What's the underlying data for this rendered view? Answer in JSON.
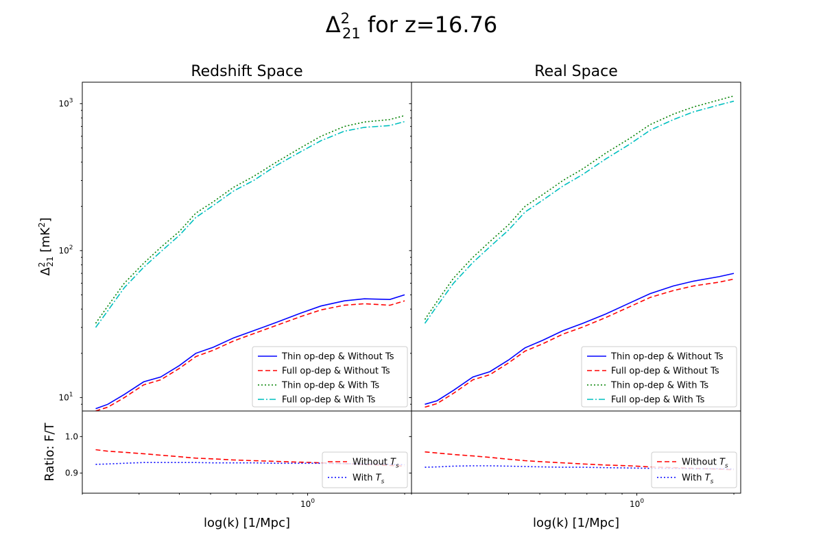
{
  "figure": {
    "suptitle_main": "Δ",
    "suptitle_sup": "2",
    "suptitle_sub": "21",
    "suptitle_rest": " for z=16.76"
  },
  "chart_data": [
    {
      "panel": "left-main",
      "type": "line",
      "title": "Redshift Space",
      "ylabel_main": "Δ",
      "ylabel_sup": "2",
      "ylabel_sub": "21",
      "ylabel_rest": " [mK",
      "ylabel_unit_sup": "2",
      "ylabel_close": "]",
      "xscale": "log",
      "yscale": "log",
      "xlim": [
        0.2,
        2.1
      ],
      "ylim": [
        8.1,
        1400
      ],
      "yticks": [
        {
          "value": 10,
          "base": "10",
          "exp": "1"
        },
        {
          "value": 100,
          "base": "10",
          "exp": "2"
        },
        {
          "value": 1000,
          "base": "10",
          "exp": "3"
        }
      ],
      "legend_position": "lower-right",
      "x": [
        0.22,
        0.24,
        0.27,
        0.31,
        0.35,
        0.4,
        0.45,
        0.51,
        0.59,
        0.68,
        0.8,
        0.95,
        1.1,
        1.3,
        1.5,
        1.8,
        2.0
      ],
      "series": [
        {
          "name": "Thin op-dep & Without Ts",
          "color": "#0000ff",
          "dash": "",
          "values": [
            8.4,
            9.0,
            10.5,
            12.8,
            13.8,
            16.5,
            20.0,
            22.0,
            25.5,
            28.5,
            32.5,
            37.5,
            42.0,
            45.5,
            47.0,
            46.5,
            50.0
          ]
        },
        {
          "name": "Full op-dep & Without Ts",
          "color": "#ff0000",
          "dash": "7,4",
          "values": [
            8.1,
            8.6,
            10.0,
            12.2,
            13.2,
            15.8,
            19.0,
            21.0,
            24.3,
            27.2,
            31.0,
            35.5,
            39.5,
            42.5,
            43.5,
            42.5,
            45.5
          ]
        },
        {
          "name": "Thin op-dep & With Ts",
          "color": "#008000",
          "dash": "2,3",
          "values": [
            32,
            42,
            60,
            82,
            105,
            135,
            180,
            215,
            270,
            320,
            400,
            500,
            600,
            700,
            750,
            780,
            830
          ]
        },
        {
          "name": "Full op-dep & With Ts",
          "color": "#00bfbf",
          "dash": "9,3,2,3",
          "values": [
            30,
            39,
            56,
            77,
            98,
            127,
            168,
            203,
            255,
            300,
            380,
            470,
            560,
            650,
            690,
            710,
            755
          ]
        }
      ]
    },
    {
      "panel": "right-main",
      "type": "line",
      "title": "Real Space",
      "xscale": "log",
      "yscale": "log",
      "xlim": [
        0.2,
        2.1
      ],
      "ylim": [
        8.1,
        1400
      ],
      "legend_position": "lower-right",
      "x": [
        0.22,
        0.24,
        0.27,
        0.31,
        0.35,
        0.4,
        0.45,
        0.51,
        0.59,
        0.68,
        0.8,
        0.95,
        1.1,
        1.3,
        1.5,
        1.8,
        2.0
      ],
      "series": [
        {
          "name": "Thin op-dep & Without Ts",
          "color": "#0000ff",
          "dash": "",
          "values": [
            9.0,
            9.5,
            11.2,
            13.8,
            15.0,
            18.0,
            21.8,
            24.5,
            28.5,
            32.0,
            37.0,
            44.0,
            51.0,
            57.5,
            62.0,
            66.5,
            70.0
          ]
        },
        {
          "name": "Full op-dep & Without Ts",
          "color": "#ff0000",
          "dash": "7,4",
          "values": [
            8.6,
            9.1,
            10.7,
            13.2,
            14.3,
            17.2,
            20.7,
            23.2,
            27.0,
            30.2,
            35.0,
            41.5,
            48.0,
            53.5,
            57.5,
            61.0,
            64.0
          ]
        },
        {
          "name": "Thin op-dep & With Ts",
          "color": "#008000",
          "dash": "2,3",
          "values": [
            34,
            45,
            65,
            90,
            115,
            150,
            200,
            240,
            300,
            360,
            460,
            580,
            720,
            850,
            950,
            1060,
            1130
          ]
        },
        {
          "name": "Full op-dep & With Ts",
          "color": "#00bfbf",
          "dash": "9,3,2,3",
          "values": [
            32,
            42,
            60,
            83,
            106,
            138,
            183,
            220,
            275,
            330,
            420,
            530,
            660,
            780,
            880,
            980,
            1040
          ]
        }
      ]
    },
    {
      "panel": "left-ratio",
      "type": "line",
      "ylabel": "Ratio: F/T",
      "xlabel": "log(k) [1/Mpc]",
      "xscale": "log",
      "xlim": [
        0.2,
        2.1
      ],
      "ylim": [
        0.845,
        1.07
      ],
      "yticks": [
        0.9,
        1.0
      ],
      "ytick_labels": [
        "0.9",
        "1.0"
      ],
      "xtick_base": "10",
      "xtick_exp": "0",
      "legend_position": "lower-right",
      "x": [
        0.22,
        0.24,
        0.27,
        0.31,
        0.35,
        0.4,
        0.45,
        0.51,
        0.59,
        0.68,
        0.8,
        0.95,
        1.1,
        1.3,
        1.5,
        1.8,
        2.0
      ],
      "series": [
        {
          "name_main": "Without ",
          "name_var": "T",
          "name_sub": "s",
          "color": "#ff0000",
          "dash": "7,4",
          "values": [
            0.964,
            0.96,
            0.957,
            0.953,
            0.949,
            0.945,
            0.941,
            0.939,
            0.936,
            0.934,
            0.932,
            0.93,
            0.928,
            0.926,
            0.924,
            0.921,
            0.919
          ]
        },
        {
          "name_main": "With ",
          "name_var": "T",
          "name_sub": "s",
          "color": "#0000ff",
          "dash": "2,3",
          "values": [
            0.924,
            0.925,
            0.927,
            0.929,
            0.929,
            0.929,
            0.929,
            0.928,
            0.928,
            0.928,
            0.927,
            0.927,
            0.927,
            0.926,
            0.925,
            0.924,
            0.923
          ]
        }
      ]
    },
    {
      "panel": "right-ratio",
      "type": "line",
      "xlabel": "log(k) [1/Mpc]",
      "xscale": "log",
      "xlim": [
        0.2,
        2.1
      ],
      "ylim": [
        0.845,
        1.07
      ],
      "xtick_base": "10",
      "xtick_exp": "0",
      "legend_position": "lower-right",
      "x": [
        0.22,
        0.24,
        0.27,
        0.31,
        0.35,
        0.4,
        0.45,
        0.51,
        0.59,
        0.68,
        0.8,
        0.95,
        1.1,
        1.3,
        1.5,
        1.8,
        2.0
      ],
      "series": [
        {
          "name_main": "Without ",
          "name_var": "T",
          "name_sub": "s",
          "color": "#ff0000",
          "dash": "7,4",
          "values": [
            0.958,
            0.955,
            0.951,
            0.947,
            0.943,
            0.938,
            0.934,
            0.931,
            0.928,
            0.925,
            0.922,
            0.92,
            0.917,
            0.915,
            0.913,
            0.911,
            0.909
          ]
        },
        {
          "name_main": "With ",
          "name_var": "T",
          "name_sub": "s",
          "color": "#0000ff",
          "dash": "2,3",
          "values": [
            0.916,
            0.917,
            0.919,
            0.92,
            0.92,
            0.919,
            0.918,
            0.917,
            0.916,
            0.916,
            0.915,
            0.914,
            0.913,
            0.913,
            0.912,
            0.912,
            0.911
          ]
        }
      ]
    }
  ]
}
